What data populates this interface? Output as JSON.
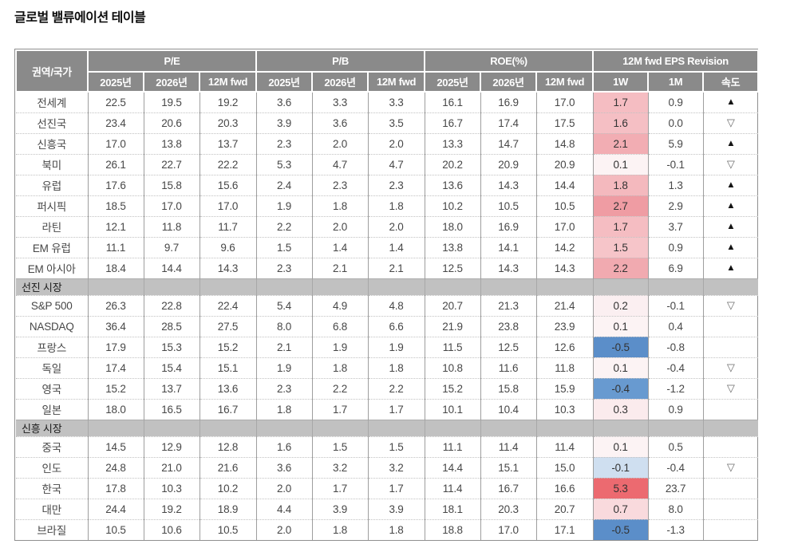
{
  "title": "글로벌 밸류에이션 테이블",
  "colors": {
    "header_bg": "#8a8a8a",
    "header_text": "#ffffff",
    "section_bg": "#c1c1c1",
    "body_text": "#474747",
    "grid_vertical": "#9e9e9e",
    "grid_horizontal_dotted": "#c2c2c2",
    "up_arrow": "#141414",
    "down_arrow": "#6b6b6b",
    "revision_scale_max_red": "#ec6a70",
    "revision_scale_min_blue": "#5b8ec9"
  },
  "table": {
    "corner_header": "권역/국가",
    "groups": [
      {
        "label": "P/E",
        "cols": [
          "2025년",
          "2026년",
          "12M fwd"
        ]
      },
      {
        "label": "P/B",
        "cols": [
          "2025년",
          "2026년",
          "12M fwd"
        ]
      },
      {
        "label": "ROE(%)",
        "cols": [
          "2025년",
          "2026년",
          "12M fwd"
        ]
      },
      {
        "label": "12M fwd EPS Revision",
        "cols": [
          "1W",
          "1M",
          "속도"
        ]
      }
    ],
    "arrows": {
      "up": "▲",
      "down": "▽"
    },
    "rows": [
      {
        "type": "data",
        "name": "전세계",
        "values": [
          "22.5",
          "19.5",
          "19.2",
          "3.6",
          "3.3",
          "3.3",
          "16.1",
          "16.9",
          "17.0",
          "1.7",
          "0.9"
        ],
        "arrow": "up",
        "w1_bg": "#f5bdc2"
      },
      {
        "type": "data",
        "name": "선진국",
        "values": [
          "23.4",
          "20.6",
          "20.3",
          "3.9",
          "3.6",
          "3.5",
          "16.7",
          "17.4",
          "17.5",
          "1.6",
          "0.0"
        ],
        "arrow": "down",
        "w1_bg": "#f5bfc4"
      },
      {
        "type": "data",
        "name": "신흥국",
        "values": [
          "17.0",
          "13.8",
          "13.7",
          "2.3",
          "2.0",
          "2.0",
          "13.3",
          "14.7",
          "14.8",
          "2.1",
          "5.9"
        ],
        "arrow": "up",
        "w1_bg": "#f2adb3"
      },
      {
        "type": "data",
        "name": "북미",
        "values": [
          "26.1",
          "22.7",
          "22.2",
          "5.3",
          "4.7",
          "4.7",
          "20.2",
          "20.9",
          "20.9",
          "0.1",
          "-0.1"
        ],
        "arrow": "down",
        "w1_bg": "#fcf3f4"
      },
      {
        "type": "data",
        "name": "유럽",
        "values": [
          "17.6",
          "15.8",
          "15.6",
          "2.4",
          "2.3",
          "2.3",
          "13.6",
          "14.3",
          "14.4",
          "1.8",
          "1.3"
        ],
        "arrow": "up",
        "w1_bg": "#f4b9be"
      },
      {
        "type": "data",
        "name": "퍼시픽",
        "values": [
          "18.5",
          "17.0",
          "17.0",
          "1.9",
          "1.8",
          "1.8",
          "10.2",
          "10.5",
          "10.5",
          "2.7",
          "2.9"
        ],
        "arrow": "up",
        "w1_bg": "#ef9ca3"
      },
      {
        "type": "data",
        "name": "라틴",
        "values": [
          "12.1",
          "11.8",
          "11.7",
          "2.2",
          "2.0",
          "2.0",
          "18.0",
          "16.9",
          "17.0",
          "1.7",
          "3.7"
        ],
        "arrow": "up",
        "w1_bg": "#f5bdc2"
      },
      {
        "type": "data",
        "name": "EM 유럽",
        "values": [
          "11.1",
          "9.7",
          "9.6",
          "1.5",
          "1.4",
          "1.4",
          "13.8",
          "14.1",
          "14.2",
          "1.5",
          "0.9"
        ],
        "arrow": "up",
        "w1_bg": "#f6c5c9"
      },
      {
        "type": "data",
        "name": "EM 아시아",
        "values": [
          "18.4",
          "14.4",
          "14.3",
          "2.3",
          "2.1",
          "2.1",
          "12.5",
          "14.3",
          "14.3",
          "2.2",
          "6.9"
        ],
        "arrow": "up",
        "w1_bg": "#f1aab0"
      },
      {
        "type": "section",
        "label": "선진 시장"
      },
      {
        "type": "data",
        "name": "S&P 500",
        "values": [
          "26.3",
          "22.8",
          "22.4",
          "5.4",
          "4.9",
          "4.8",
          "20.7",
          "21.3",
          "21.4",
          "0.2",
          "-0.1"
        ],
        "arrow": "down",
        "w1_bg": "#fbeff1"
      },
      {
        "type": "data",
        "name": "NASDAQ",
        "values": [
          "36.4",
          "28.5",
          "27.5",
          "8.0",
          "6.8",
          "6.6",
          "21.9",
          "23.8",
          "23.9",
          "0.1",
          "0.4"
        ],
        "arrow": "",
        "w1_bg": "#fcf3f4"
      },
      {
        "type": "data",
        "name": "프랑스",
        "values": [
          "17.9",
          "15.3",
          "15.2",
          "2.1",
          "1.9",
          "1.9",
          "11.5",
          "12.5",
          "12.6",
          "-0.5",
          "-0.8"
        ],
        "arrow": "",
        "w1_bg": "#5b8ec9"
      },
      {
        "type": "data",
        "name": "독일",
        "values": [
          "17.4",
          "15.4",
          "15.1",
          "1.9",
          "1.8",
          "1.8",
          "10.8",
          "11.6",
          "11.8",
          "0.1",
          "-0.4"
        ],
        "arrow": "down",
        "w1_bg": "#fcf3f4"
      },
      {
        "type": "data",
        "name": "영국",
        "values": [
          "15.2",
          "13.7",
          "13.6",
          "2.3",
          "2.2",
          "2.2",
          "15.2",
          "15.8",
          "15.9",
          "-0.4",
          "-1.2"
        ],
        "arrow": "down",
        "w1_bg": "#689ad0"
      },
      {
        "type": "data",
        "name": "일본",
        "values": [
          "18.0",
          "16.5",
          "16.7",
          "1.8",
          "1.7",
          "1.7",
          "10.1",
          "10.4",
          "10.3",
          "0.3",
          "0.9"
        ],
        "arrow": "",
        "w1_bg": "#fbebed"
      },
      {
        "type": "section",
        "label": "신흥 시장"
      },
      {
        "type": "data",
        "name": "중국",
        "values": [
          "14.5",
          "12.9",
          "12.8",
          "1.6",
          "1.5",
          "1.5",
          "11.1",
          "11.4",
          "11.4",
          "0.1",
          "0.5"
        ],
        "arrow": "",
        "w1_bg": "#fcf3f4"
      },
      {
        "type": "data",
        "name": "인도",
        "values": [
          "24.8",
          "21.0",
          "21.6",
          "3.6",
          "3.2",
          "3.2",
          "14.4",
          "15.1",
          "15.0",
          "-0.1",
          "-0.4"
        ],
        "arrow": "down",
        "w1_bg": "#cfdff0"
      },
      {
        "type": "data",
        "name": "한국",
        "values": [
          "17.8",
          "10.3",
          "10.2",
          "2.0",
          "1.7",
          "1.7",
          "11.4",
          "16.7",
          "16.6",
          "5.3",
          "23.7"
        ],
        "arrow": "",
        "w1_bg": "#ec6a70"
      },
      {
        "type": "data",
        "name": "대만",
        "values": [
          "24.4",
          "19.2",
          "18.9",
          "4.4",
          "3.9",
          "3.9",
          "18.1",
          "20.3",
          "20.7",
          "0.7",
          "8.0"
        ],
        "arrow": "",
        "w1_bg": "#f9dadd"
      },
      {
        "type": "data",
        "name": "브라질",
        "values": [
          "10.5",
          "10.6",
          "10.5",
          "2.0",
          "1.8",
          "1.8",
          "18.8",
          "17.0",
          "17.1",
          "-0.5",
          "-1.3"
        ],
        "arrow": "",
        "w1_bg": "#5b8ec9"
      }
    ]
  }
}
